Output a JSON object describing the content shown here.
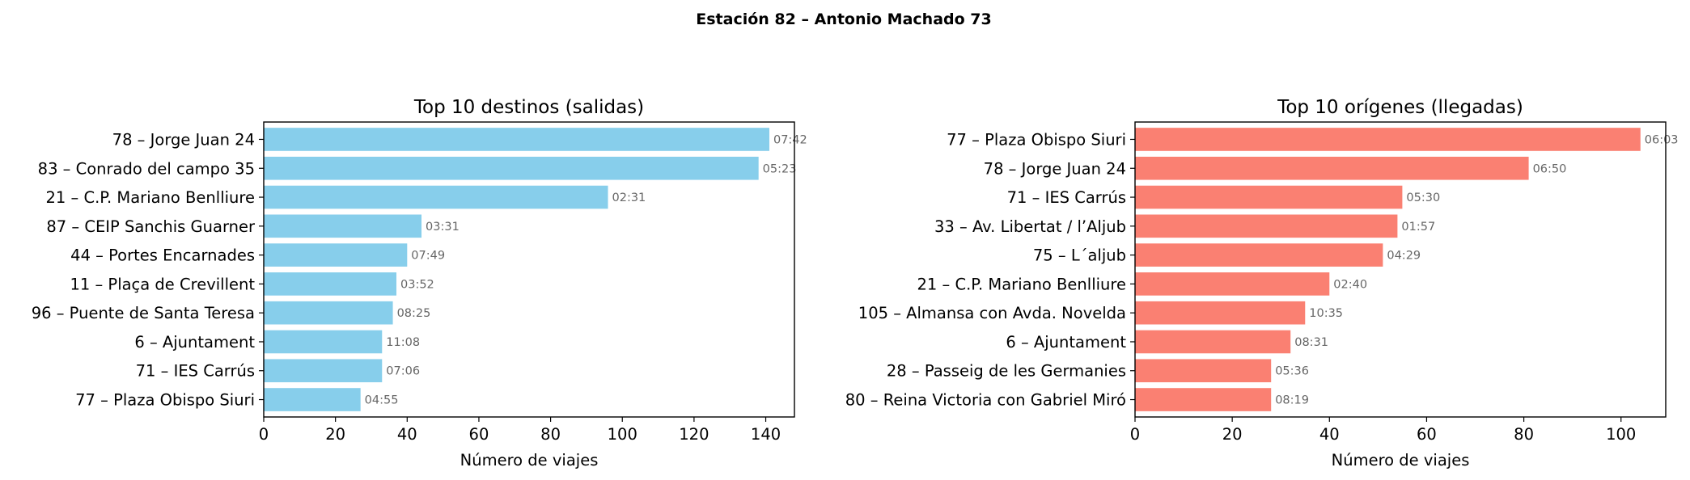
{
  "suptitle": "Estación 82 – Antonio Machado 73",
  "chart_data": [
    {
      "type": "bar",
      "orientation": "horizontal",
      "title": "Top 10 destinos (salidas)",
      "xlabel": "Número de viajes",
      "ylabel": "",
      "xlim": [
        0,
        148
      ],
      "xticks": [
        0,
        20,
        40,
        60,
        80,
        100,
        120,
        140
      ],
      "color": "#87CEEB",
      "grid": false,
      "categories": [
        "78 – Jorge Juan 24",
        "83 – Conrado del campo 35",
        "21 – C.P. Mariano Benlliure",
        "87 – CEIP Sanchis Guarner",
        "44 – Portes Encarnades",
        "11 – Plaça de Crevillent",
        "96 – Puente de Santa Teresa",
        "6 – Ajuntament",
        "71 – IES Carrús",
        "77 – Plaza Obispo Siuri"
      ],
      "values": [
        141,
        138,
        96,
        44,
        40,
        37,
        36,
        33,
        33,
        27
      ],
      "data_labels": [
        "07:42",
        "05:23",
        "02:31",
        "03:31",
        "07:49",
        "03:52",
        "08:25",
        "11:08",
        "07:06",
        "04:55"
      ]
    },
    {
      "type": "bar",
      "orientation": "horizontal",
      "title": "Top 10 orígenes (llegadas)",
      "xlabel": "Número de viajes",
      "ylabel": "",
      "xlim": [
        0,
        109.2
      ],
      "xticks": [
        0,
        20,
        40,
        60,
        80,
        100
      ],
      "color": "#FA8072",
      "grid": false,
      "categories": [
        "77 – Plaza Obispo Siuri",
        "78 – Jorge Juan 24",
        "71 – IES Carrús",
        "33 – Av. Libertat / l’Aljub",
        "75 – L´aljub",
        "21 – C.P. Mariano Benlliure",
        "105 – Almansa con Avda. Novelda",
        "6 – Ajuntament",
        "28 – Passeig de les Germanies",
        "80 – Reina Victoria con Gabriel Miró"
      ],
      "values": [
        104,
        81,
        55,
        54,
        51,
        40,
        35,
        32,
        28,
        28
      ],
      "data_labels": [
        "06:03",
        "06:50",
        "05:30",
        "01:57",
        "04:29",
        "02:40",
        "10:35",
        "08:31",
        "05:36",
        "08:19"
      ]
    }
  ]
}
